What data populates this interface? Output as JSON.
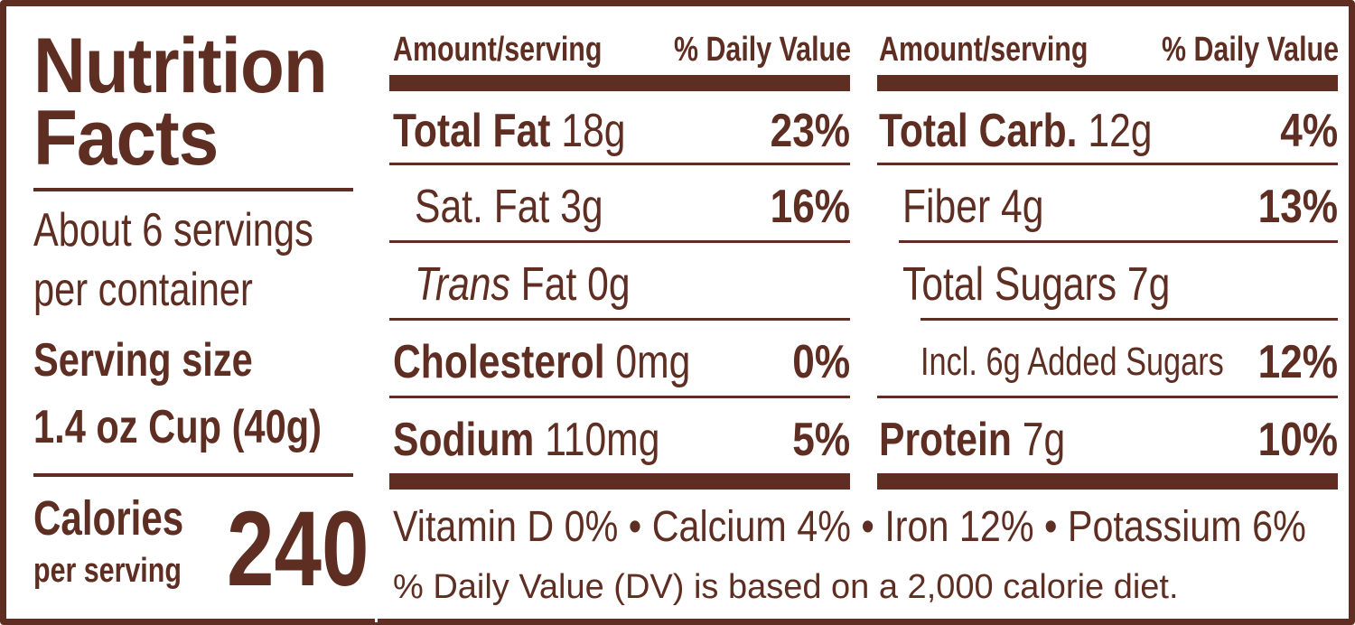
{
  "panel": {
    "title_line1": "Nutrition",
    "title_line2": "Facts",
    "servings_line1": "About 6 servings",
    "servings_line2": "per container",
    "serving_size_label": "Serving size",
    "serving_size_value": "1.4 oz Cup (40g)",
    "calories_label": "Calories",
    "calories_sublabel": "per serving",
    "calories_value": "240"
  },
  "left_table": {
    "header_amount": "Amount/serving",
    "header_dv": "% Daily Value",
    "rows": [
      {
        "name": "Total Fat",
        "amount": "18g",
        "dv": "23%"
      },
      {
        "name": "Sat. Fat",
        "amount": "3g",
        "dv": "16%"
      },
      {
        "name_italic": "Trans",
        "name": "Fat",
        "amount": "0g",
        "dv": ""
      },
      {
        "name": "Cholesterol",
        "amount": "0mg",
        "dv": "0%"
      },
      {
        "name": "Sodium",
        "amount": "110mg",
        "dv": "5%"
      }
    ]
  },
  "right_table": {
    "header_amount": "Amount/serving",
    "header_dv": "% Daily Value",
    "rows": [
      {
        "name": "Total Carb.",
        "amount": "12g",
        "dv": "4%"
      },
      {
        "name": "Fiber",
        "amount": "4g",
        "dv": "13%"
      },
      {
        "name": "Total Sugars",
        "amount": "7g",
        "dv": ""
      },
      {
        "name": "Incl. 6g Added Sugars",
        "amount": "",
        "dv": "12%"
      },
      {
        "name": "Protein",
        "amount": "7g",
        "dv": "10%"
      }
    ]
  },
  "vitamins": "Vitamin D 0% • Calcium 4% • Iron 12% • Potassium 6%",
  "footnote": "% Daily Value (DV) is based on a 2,000 calorie diet.",
  "colors": {
    "ink": "#5e2e22",
    "background": "#ffffff"
  }
}
